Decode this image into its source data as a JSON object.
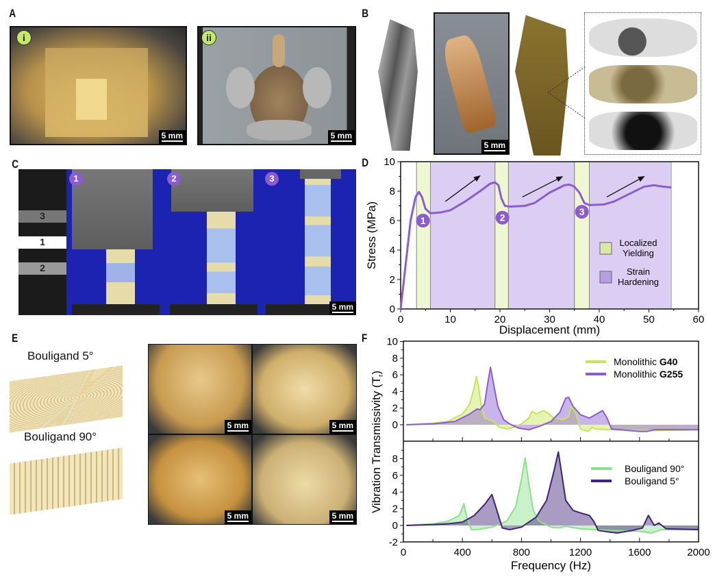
{
  "panels": {
    "A": "A",
    "B": "B",
    "C": "C",
    "D": "D",
    "E": "E",
    "F": "F"
  },
  "panel_a": {
    "badge_i": "i",
    "badge_ii": "ii",
    "scale_i": "5 mm",
    "scale_ii": "5 mm"
  },
  "panel_b": {
    "scale": "5 mm"
  },
  "panel_c": {
    "strip_labels": [
      "3",
      "1",
      "2"
    ],
    "stages": [
      "1",
      "2",
      "3"
    ],
    "scale": "5 mm"
  },
  "panel_e": {
    "label_5": "Bouligand 5°",
    "label_90": "Bouligand 90°",
    "scales": [
      "5 mm",
      "5 mm",
      "5 mm",
      "5 mm"
    ]
  },
  "colors": {
    "purple": "#8a5cd0",
    "yield": "#eef6d2",
    "harden": "#dccdf2",
    "g40": "#c6e45c",
    "g255": "#8a5cd0",
    "b90": "#8ce08a",
    "b5": "#3f2378"
  },
  "chart_data": [
    {
      "type": "line",
      "title": "",
      "xlabel": "Displacement (mm)",
      "ylabel": "Stress (MPa)",
      "xlim": [
        0,
        60
      ],
      "ylim": [
        0,
        10
      ],
      "xticks": [
        0,
        10,
        20,
        30,
        40,
        50,
        60
      ],
      "yticks": [
        0,
        2,
        4,
        6,
        8,
        10
      ],
      "legend": [
        {
          "label": [
            "Localized",
            "Yielding"
          ],
          "type": "yield"
        },
        {
          "label": [
            "Strain",
            "Hardening"
          ],
          "type": "harden"
        }
      ],
      "regions": {
        "yield": [
          [
            3.2,
            6
          ],
          [
            19,
            21.7
          ],
          [
            35,
            38
          ]
        ],
        "harden": [
          [
            6,
            19
          ],
          [
            21.7,
            35
          ],
          [
            38,
            54.5
          ]
        ]
      },
      "markers": [
        {
          "label": "1",
          "x": 4.5,
          "y": 6
        },
        {
          "label": "2",
          "x": 20.5,
          "y": 6.2
        },
        {
          "label": "3",
          "x": 36.5,
          "y": 6.6
        }
      ],
      "series": [
        {
          "name": "stress",
          "x": [
            0,
            1,
            2,
            3,
            3.7,
            4.3,
            5,
            6,
            8,
            10,
            13,
            16,
            18,
            19,
            19.7,
            20.3,
            21,
            22,
            25,
            27,
            30,
            33,
            34,
            35,
            36,
            37,
            38,
            41,
            43,
            46,
            49,
            51,
            53,
            54.5
          ],
          "y": [
            0,
            3,
            6,
            7.6,
            7.95,
            7.6,
            6.8,
            6.5,
            6.55,
            6.7,
            7.3,
            8,
            8.5,
            8.6,
            8.4,
            7.5,
            7,
            6.95,
            7,
            7.2,
            7.9,
            8.4,
            8.45,
            8.3,
            7.9,
            7.2,
            7.05,
            7.1,
            7.3,
            7.8,
            8.3,
            8.4,
            8.3,
            8.25
          ]
        }
      ]
    },
    {
      "type": "area",
      "xlabel": "Frequency (Hz)",
      "ylabel": "Vibration Transmissivity (T",
      "ylabel_sub": "r",
      "ylabel_end": ")",
      "xlim": [
        0,
        2000
      ],
      "xticks": [
        0,
        400,
        800,
        1200,
        1600,
        2000
      ],
      "top": {
        "ylim": [
          -2,
          10
        ],
        "yticks": [
          0,
          2,
          4,
          6,
          8,
          10
        ],
        "series": [
          {
            "name": "Monolithic ",
            "name_bold": "G40",
            "color": "g40",
            "x": [
              20,
              100,
              200,
              300,
              400,
              450,
              480,
              495,
              510,
              530,
              550,
              600,
              650,
              700,
              750,
              800,
              850,
              870,
              900,
              950,
              980,
              1020,
              1080,
              1120,
              1140,
              1170,
              1200,
              1250,
              1280,
              1300,
              1400,
              1700,
              2000
            ],
            "y": [
              0,
              0.1,
              0.2,
              0.4,
              1.3,
              2.5,
              4.5,
              5.8,
              4.5,
              2,
              0.8,
              0.5,
              -0.3,
              -0.5,
              -0.3,
              0.1,
              0.8,
              1.6,
              1.3,
              1.7,
              1.4,
              0.8,
              0.6,
              1,
              2.3,
              1.3,
              -0.5,
              -0.8,
              -0.3,
              -0.5,
              -0.6,
              -0.7,
              -0.6
            ]
          },
          {
            "name": "Monolithic ",
            "name_bold": "G255",
            "color": "g255",
            "x": [
              20,
              200,
              350,
              450,
              500,
              520,
              550,
              570,
              590,
              610,
              640,
              680,
              720,
              780,
              850,
              920,
              1000,
              1060,
              1100,
              1120,
              1150,
              1200,
              1260,
              1320,
              1350,
              1380,
              1410,
              1600,
              1650,
              1700,
              2000
            ],
            "y": [
              0,
              0.1,
              0.4,
              1.3,
              1.9,
              1.8,
              2.5,
              4.8,
              6.9,
              5,
              2.2,
              0.6,
              0.1,
              -0.4,
              -0.6,
              -0.2,
              0.4,
              1.5,
              3.2,
              3.3,
              2.2,
              1.2,
              0.8,
              1.4,
              1.7,
              0.8,
              -0.5,
              -0.8,
              -0.8,
              -0.6,
              -0.6
            ]
          }
        ]
      },
      "bottom": {
        "ylim": [
          -2,
          9.5
        ],
        "yticks": [
          -2,
          0,
          2,
          4,
          6,
          8
        ],
        "series": [
          {
            "name": "Bouligand 90°",
            "color": "b90",
            "x": [
              20,
              200,
              300,
              380,
              410,
              430,
              460,
              500,
              600,
              700,
              760,
              800,
              825,
              850,
              880,
              920,
              1000,
              1050,
              1100,
              1200,
              1400,
              1600,
              1680,
              1750,
              2000
            ],
            "y": [
              0,
              0.2,
              0.5,
              1.2,
              2.6,
              1,
              -0.5,
              -0.5,
              -0.2,
              0.5,
              2.2,
              5.5,
              8.1,
              5,
              1.8,
              0.5,
              -0.2,
              -0.3,
              -0.1,
              -0.4,
              -0.6,
              -0.7,
              -0.9,
              -0.5,
              -0.5
            ]
          },
          {
            "name": "Bouligand 5°",
            "color": "b5",
            "x": [
              20,
              200,
              300,
              400,
              480,
              550,
              600,
              630,
              670,
              720,
              800,
              900,
              970,
              1020,
              1050,
              1070,
              1100,
              1150,
              1200,
              1260,
              1290,
              1320,
              1400,
              1450,
              1550,
              1620,
              1660,
              1700,
              1730,
              1780,
              2000
            ],
            "y": [
              0,
              0.1,
              0.2,
              0.4,
              1.2,
              2.5,
              3.7,
              2,
              -0.3,
              -0.5,
              -0.2,
              1,
              3,
              6.5,
              8.8,
              6.5,
              3,
              1.8,
              1.5,
              1.2,
              0.5,
              -0.6,
              -0.8,
              -0.9,
              -0.6,
              -0.3,
              1.2,
              0,
              0.3,
              -0.4,
              -0.5
            ]
          }
        ]
      }
    }
  ]
}
